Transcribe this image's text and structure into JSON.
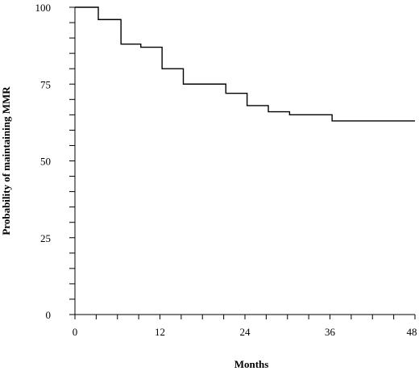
{
  "chart_data": {
    "type": "line",
    "title": "",
    "xlabel": "Months",
    "ylabel": "Probability of maintaining MMR",
    "xlim": [
      0,
      48
    ],
    "ylim": [
      0,
      100
    ],
    "x_ticks": [
      0,
      12,
      24,
      36,
      48
    ],
    "x_tick_labels": [
      "0",
      "12",
      "24",
      "36",
      "48"
    ],
    "y_major_ticks": [
      0,
      25,
      50,
      75,
      100
    ],
    "y_tick_labels": [
      "0",
      "25",
      "50",
      "75",
      "100"
    ],
    "y_minor_step": 5,
    "x_minor_step": 3,
    "grid": false,
    "step": true,
    "series": [
      {
        "x": [
          0,
          3.3,
          6.5,
          9.3,
          12.3,
          15.3,
          21.3,
          24.3,
          27.3,
          30.3,
          36.3,
          48
        ],
        "y": [
          100,
          96,
          88,
          87,
          80,
          75,
          72,
          68,
          66,
          65,
          63,
          63
        ]
      }
    ]
  }
}
